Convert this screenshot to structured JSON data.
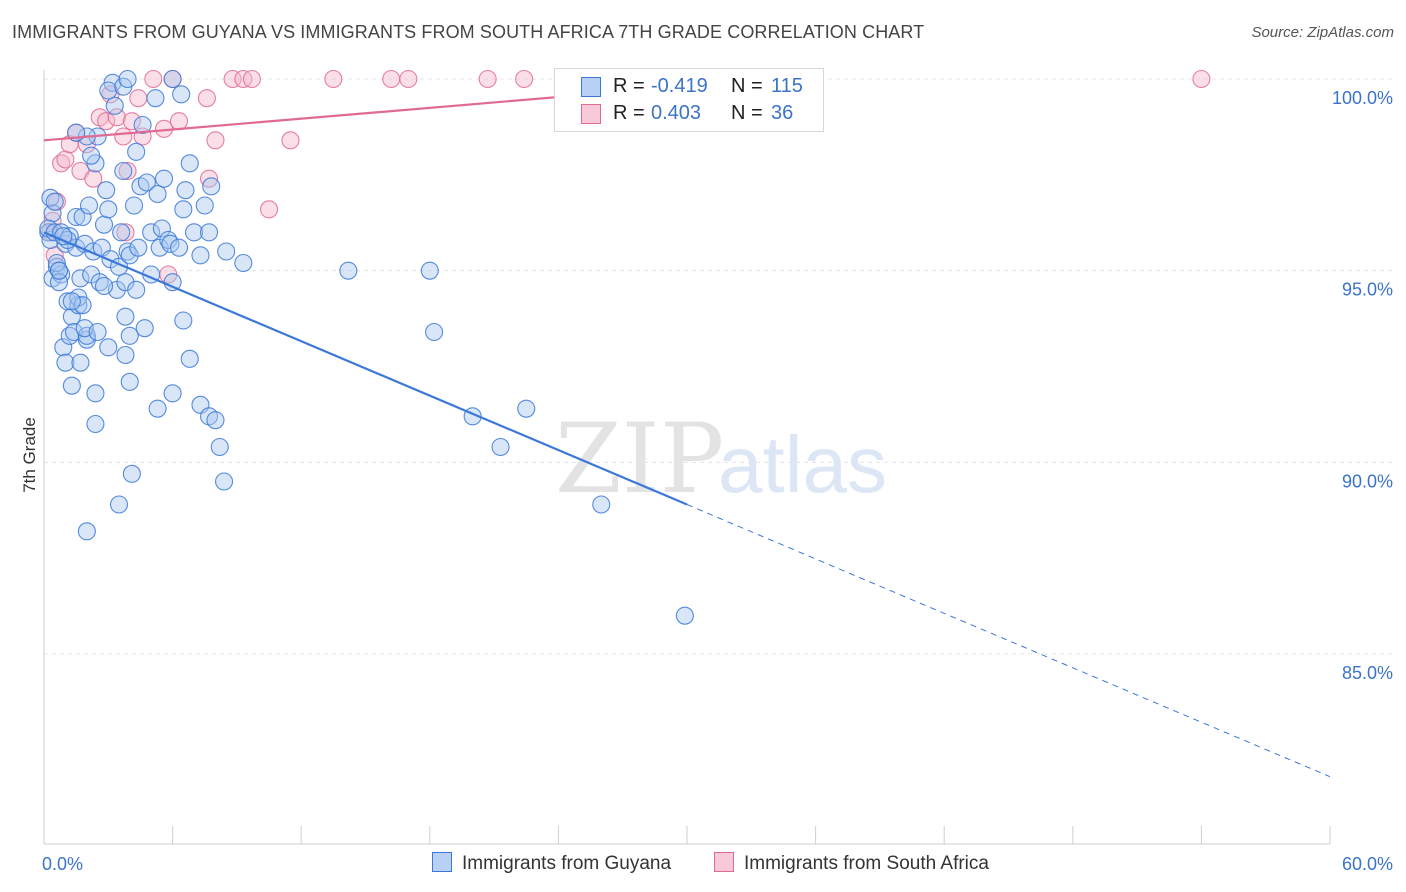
{
  "title": "IMMIGRANTS FROM GUYANA VS IMMIGRANTS FROM SOUTH AFRICA 7TH GRADE CORRELATION CHART",
  "source": "Source: ZipAtlas.com",
  "watermark": {
    "zip": "ZIP",
    "atlas": "atlas"
  },
  "colors": {
    "blue": "#3b78d8",
    "blue_fill": "#a9c7f0",
    "pink": "#e06a93",
    "pink_fill": "#f3b8cc",
    "tick_text": "#3b73c8"
  },
  "legend": {
    "rows": [
      {
        "r_label": "R =",
        "r_value": "-0.419",
        "n_label": "N =",
        "n_value": "115"
      },
      {
        "r_label": "R =",
        "r_value": "0.403",
        "n_label": "N =",
        "n_value": "36"
      }
    ]
  },
  "bottom_legend": {
    "series1": "Immigrants from Guyana",
    "series2": "Immigrants from South Africa"
  },
  "chart_data": {
    "type": "scatter",
    "xlabel": "",
    "ylabel": "7th Grade",
    "xlim": [
      0,
      60
    ],
    "ylim": [
      80.0,
      100.5
    ],
    "x_tick_labels": {
      "left": "0.0%",
      "right": "60.0%"
    },
    "y_ticks": [
      {
        "value": 100,
        "label": "100.0%"
      },
      {
        "value": 95,
        "label": "95.0%"
      },
      {
        "value": 90,
        "label": "90.0%"
      },
      {
        "value": 85,
        "label": "85.0%"
      }
    ],
    "series": [
      {
        "name": "Immigrants from Guyana",
        "r": -0.419,
        "n": 115,
        "trend": {
          "x0": 0,
          "y0": 96.0,
          "x1": 30,
          "y1": 88.9,
          "dashed_to_x": 60,
          "dashed_to_y": 81.8
        },
        "points": [
          [
            0.2,
            96.0
          ],
          [
            0.3,
            95.8
          ],
          [
            0.4,
            96.5
          ],
          [
            0.2,
            96.1
          ],
          [
            0.3,
            96.9
          ],
          [
            0.4,
            94.8
          ],
          [
            0.5,
            96.8
          ],
          [
            0.6,
            95.1
          ],
          [
            0.5,
            96.0
          ],
          [
            0.7,
            95.0
          ],
          [
            0.8,
            94.9
          ],
          [
            0.7,
            94.7
          ],
          [
            0.8,
            96.0
          ],
          [
            0.9,
            93.0
          ],
          [
            1.0,
            92.6
          ],
          [
            1.1,
            94.2
          ],
          [
            1.0,
            95.7
          ],
          [
            1.2,
            95.9
          ],
          [
            1.3,
            93.8
          ],
          [
            1.2,
            93.3
          ],
          [
            1.4,
            93.4
          ],
          [
            1.5,
            95.6
          ],
          [
            1.6,
            94.1
          ],
          [
            1.5,
            96.4
          ],
          [
            1.7,
            94.8
          ],
          [
            1.8,
            96.4
          ],
          [
            1.9,
            95.7
          ],
          [
            2.0,
            93.2
          ],
          [
            2.0,
            93.3
          ],
          [
            2.1,
            96.7
          ],
          [
            2.2,
            94.9
          ],
          [
            2.3,
            95.5
          ],
          [
            2.4,
            97.8
          ],
          [
            2.5,
            98.5
          ],
          [
            2.6,
            94.7
          ],
          [
            2.7,
            95.6
          ],
          [
            2.8,
            96.2
          ],
          [
            2.9,
            97.1
          ],
          [
            3.0,
            96.6
          ],
          [
            3.1,
            95.3
          ],
          [
            3.2,
            99.9
          ],
          [
            3.3,
            99.3
          ],
          [
            3.4,
            94.5
          ],
          [
            3.5,
            95.1
          ],
          [
            3.6,
            96.0
          ],
          [
            3.7,
            97.6
          ],
          [
            3.8,
            94.7
          ],
          [
            3.9,
            95.5
          ],
          [
            4.0,
            95.4
          ],
          [
            4.2,
            96.7
          ],
          [
            4.3,
            94.5
          ],
          [
            4.4,
            95.6
          ],
          [
            4.5,
            97.2
          ],
          [
            4.6,
            98.8
          ],
          [
            4.8,
            97.3
          ],
          [
            5.0,
            96.0
          ],
          [
            5.2,
            99.5
          ],
          [
            5.3,
            97.0
          ],
          [
            5.4,
            95.6
          ],
          [
            5.5,
            96.1
          ],
          [
            5.6,
            97.4
          ],
          [
            5.8,
            95.8
          ],
          [
            5.9,
            95.7
          ],
          [
            6.0,
            94.7
          ],
          [
            6.3,
            95.6
          ],
          [
            6.4,
            99.6
          ],
          [
            6.5,
            96.6
          ],
          [
            6.6,
            97.1
          ],
          [
            6.8,
            97.8
          ],
          [
            7.0,
            96.0
          ],
          [
            7.3,
            95.4
          ],
          [
            7.5,
            96.7
          ],
          [
            7.8,
            97.2
          ],
          [
            8.5,
            95.5
          ],
          [
            9.3,
            95.2
          ],
          [
            1.3,
            92.0
          ],
          [
            1.7,
            92.6
          ],
          [
            2.4,
            91.8
          ],
          [
            4.0,
            92.1
          ],
          [
            3.8,
            92.8
          ],
          [
            5.3,
            91.4
          ],
          [
            6.0,
            91.8
          ],
          [
            7.3,
            91.5
          ],
          [
            7.7,
            91.2
          ],
          [
            8.0,
            91.1
          ],
          [
            8.2,
            90.4
          ],
          [
            8.4,
            89.5
          ],
          [
            2.4,
            91.0
          ],
          [
            4.1,
            89.7
          ],
          [
            3.5,
            88.9
          ],
          [
            2.0,
            88.2
          ],
          [
            1.9,
            93.5
          ],
          [
            2.5,
            93.4
          ],
          [
            3.0,
            93.0
          ],
          [
            3.8,
            93.8
          ],
          [
            4.0,
            93.3
          ],
          [
            4.7,
            93.5
          ],
          [
            6.5,
            93.7
          ],
          [
            1.6,
            94.3
          ],
          [
            1.8,
            94.1
          ],
          [
            2.0,
            98.5
          ],
          [
            2.2,
            98.0
          ],
          [
            1.5,
            98.6
          ],
          [
            3.0,
            99.7
          ],
          [
            3.7,
            99.8
          ],
          [
            4.3,
            98.1
          ],
          [
            6.0,
            100.0
          ],
          [
            3.9,
            100.0
          ],
          [
            0.6,
            95.2
          ],
          [
            1.1,
            95.8
          ],
          [
            18.2,
            93.4
          ],
          [
            20.0,
            91.2
          ],
          [
            22.5,
            91.4
          ],
          [
            21.3,
            90.4
          ],
          [
            26.0,
            88.9
          ],
          [
            29.9,
            86.0
          ],
          [
            18.0,
            95.0
          ],
          [
            14.2,
            95.0
          ],
          [
            7.7,
            96.0
          ],
          [
            1.3,
            94.2
          ],
          [
            0.9,
            95.9
          ],
          [
            0.7,
            95.0
          ],
          [
            2.8,
            94.6
          ],
          [
            5.0,
            94.9
          ],
          [
            6.8,
            92.7
          ]
        ]
      },
      {
        "name": "Immigrants from South Africa",
        "r": 0.403,
        "n": 36,
        "trend": {
          "x0": 0,
          "y0": 98.4,
          "x1": 34,
          "y1": 100.0
        },
        "points": [
          [
            0.3,
            96.0
          ],
          [
            0.4,
            96.3
          ],
          [
            0.5,
            95.4
          ],
          [
            0.8,
            97.8
          ],
          [
            1.0,
            97.9
          ],
          [
            1.2,
            98.3
          ],
          [
            1.5,
            98.6
          ],
          [
            1.7,
            97.6
          ],
          [
            2.0,
            98.3
          ],
          [
            2.3,
            97.4
          ],
          [
            2.6,
            99.0
          ],
          [
            2.9,
            98.9
          ],
          [
            3.1,
            99.6
          ],
          [
            3.4,
            99.0
          ],
          [
            3.7,
            98.5
          ],
          [
            3.9,
            97.6
          ],
          [
            4.1,
            98.9
          ],
          [
            4.4,
            99.5
          ],
          [
            4.6,
            98.5
          ],
          [
            5.1,
            100.0
          ],
          [
            5.6,
            98.7
          ],
          [
            6.0,
            100.0
          ],
          [
            6.3,
            98.9
          ],
          [
            7.6,
            99.5
          ],
          [
            7.7,
            97.4
          ],
          [
            8.0,
            98.4
          ],
          [
            8.8,
            100.0
          ],
          [
            9.3,
            100.0
          ],
          [
            9.7,
            100.0
          ],
          [
            13.5,
            100.0
          ],
          [
            16.2,
            100.0
          ],
          [
            17.0,
            100.0
          ],
          [
            20.7,
            100.0
          ],
          [
            22.4,
            100.0
          ],
          [
            11.5,
            98.4
          ],
          [
            10.5,
            96.6
          ],
          [
            5.8,
            94.9
          ],
          [
            54.0,
            100.0
          ],
          [
            3.8,
            96.0
          ],
          [
            0.6,
            96.8
          ]
        ]
      }
    ]
  }
}
